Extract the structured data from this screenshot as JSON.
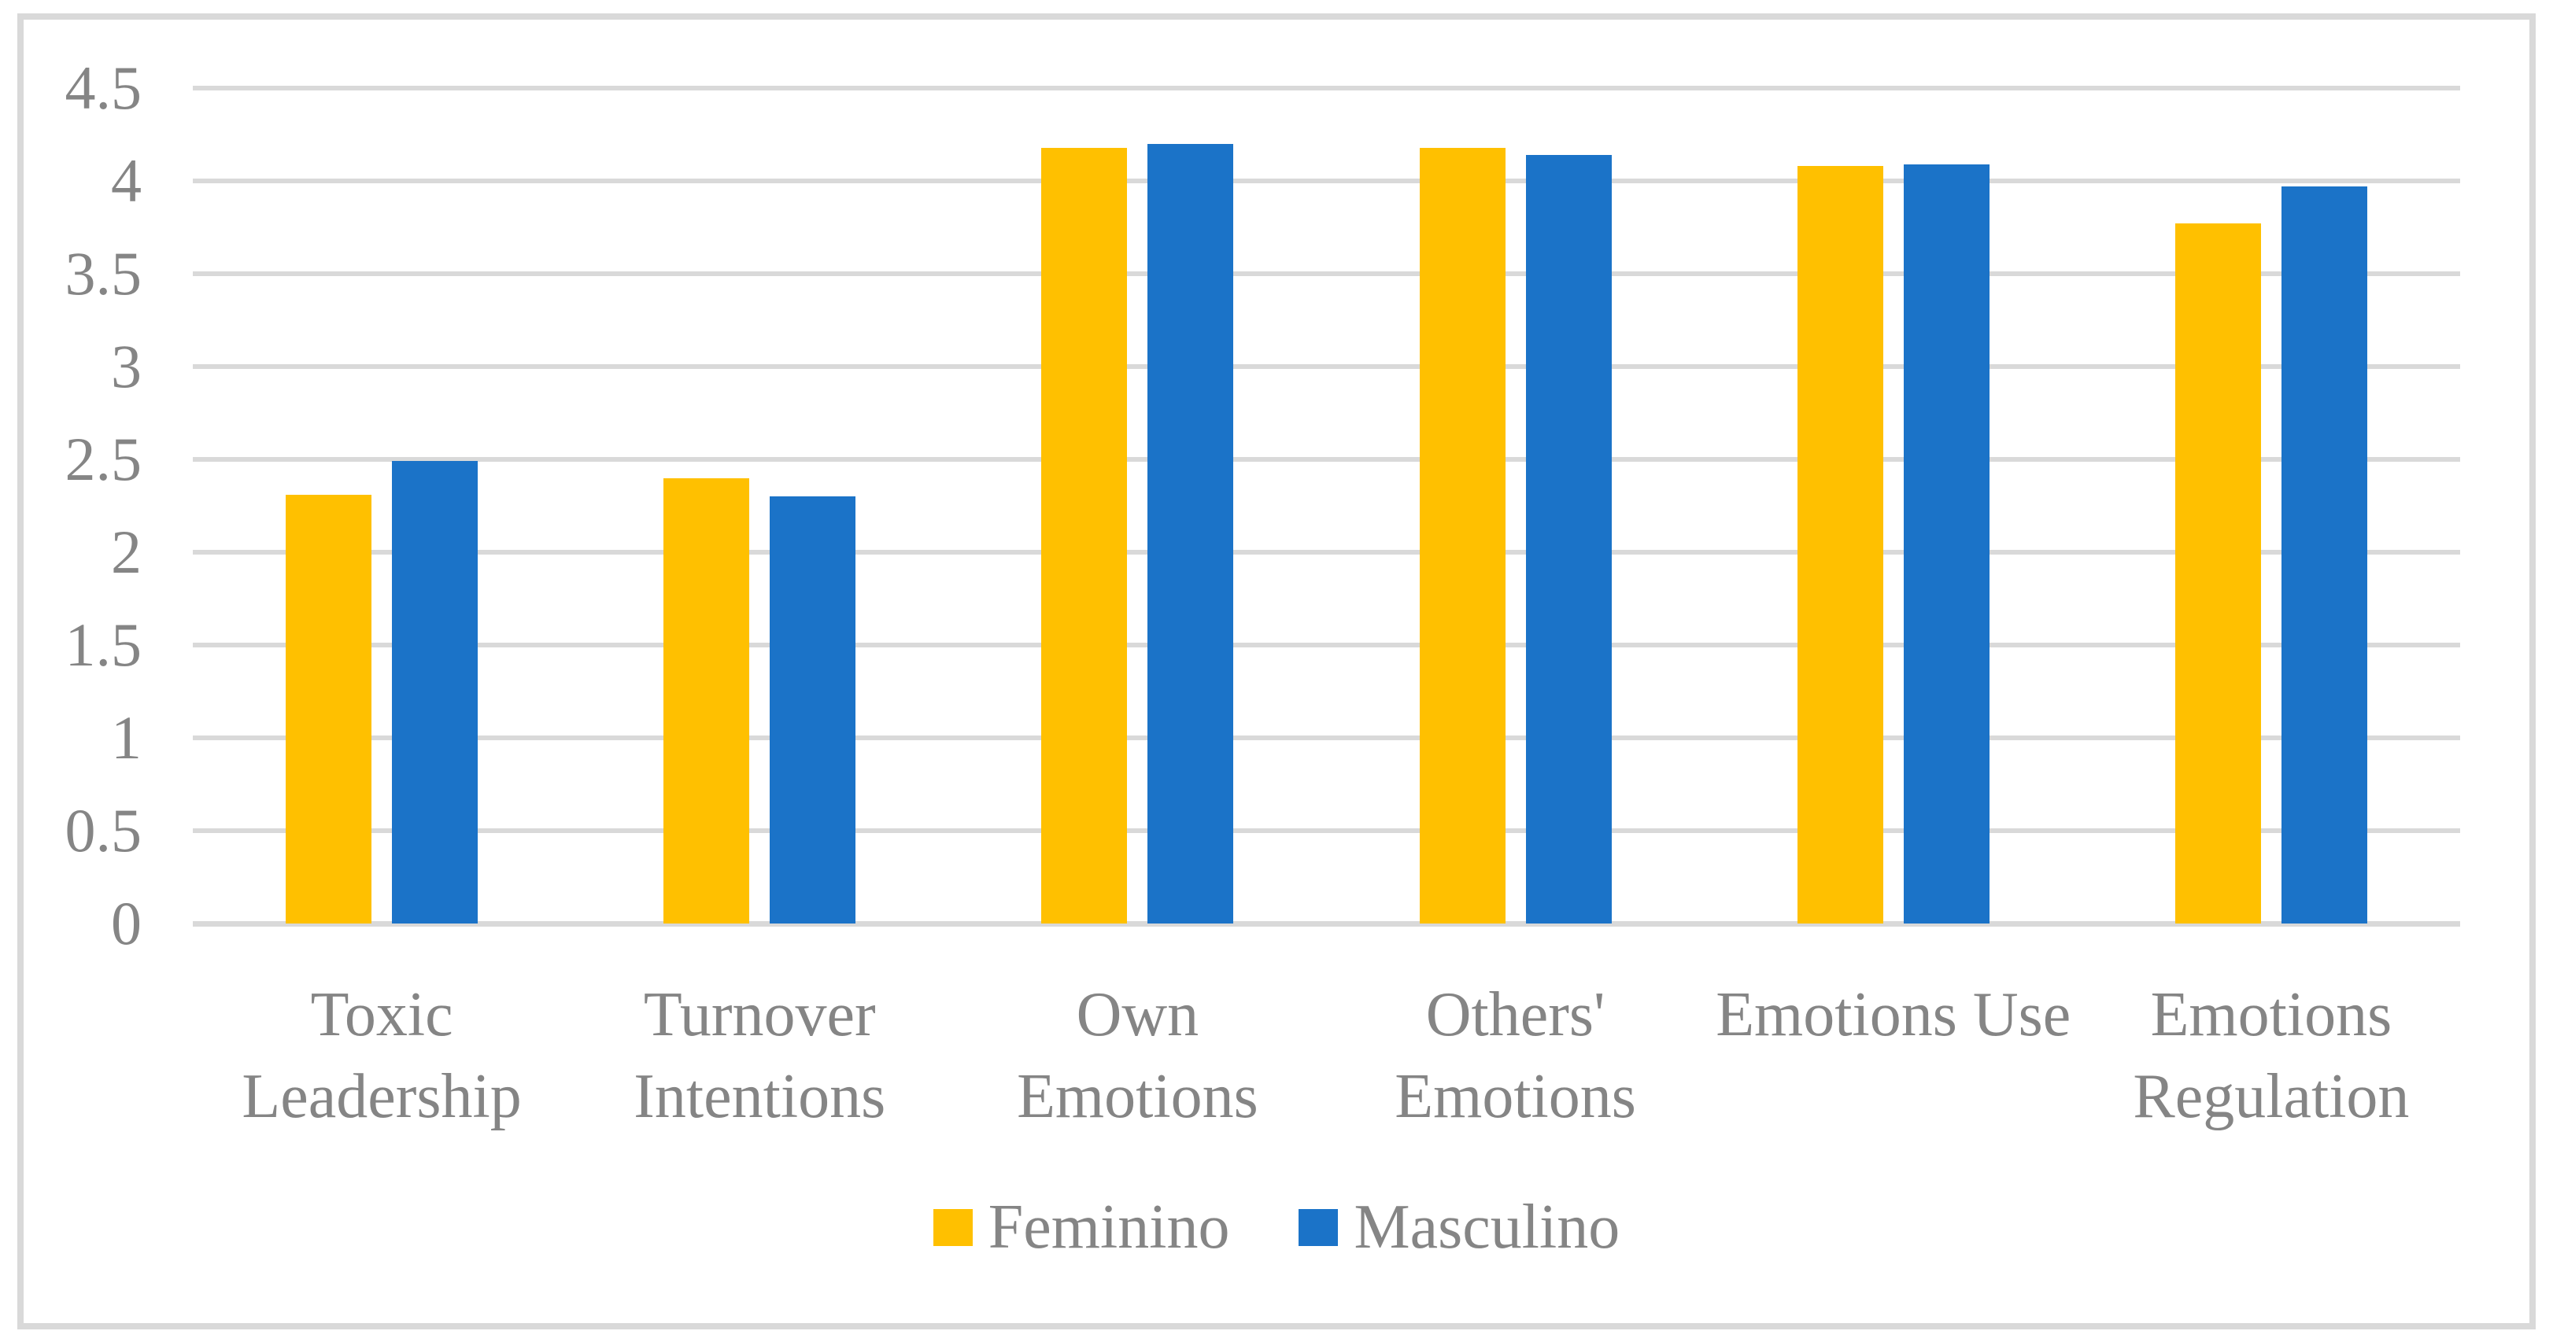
{
  "colors": {
    "background": "#ffffff",
    "frame_border": "#d9d9d9",
    "gridline": "#d9d9d9",
    "text": "#858585",
    "feminino": "#ffc000",
    "masculino": "#1b73c8"
  },
  "chart_data": {
    "type": "bar",
    "title": "",
    "xlabel": "",
    "ylabel": "",
    "categories": [
      "Toxic Leadership",
      "Turnover Intentions",
      "Own Emotions",
      "Others' Emotions",
      "Emotions Use",
      "Emotions Regulation"
    ],
    "category_label_lines": [
      [
        "Toxic",
        "Leadership"
      ],
      [
        "Turnover",
        "Intentions"
      ],
      [
        "Own",
        "Emotions"
      ],
      [
        "Others'",
        "Emotions"
      ],
      [
        "Emotions Use"
      ],
      [
        "Emotions",
        "Regulation"
      ]
    ],
    "series": [
      {
        "name": "Feminino",
        "color": "#ffc000",
        "values": [
          2.31,
          2.4,
          4.18,
          4.18,
          4.08,
          3.77
        ]
      },
      {
        "name": "Masculino",
        "color": "#1b73c8",
        "values": [
          2.49,
          2.3,
          4.2,
          4.14,
          4.09,
          3.97
        ]
      }
    ],
    "ylim": [
      0,
      4.5
    ],
    "y_ticks": [
      0,
      0.5,
      1,
      1.5,
      2,
      2.5,
      3,
      3.5,
      4,
      4.5
    ],
    "y_tick_labels": [
      "0",
      "0.5",
      "1",
      "1.5",
      "2",
      "2.5",
      "3",
      "3.5",
      "4",
      "4.5"
    ],
    "grid": true,
    "legend_position": "bottom"
  }
}
